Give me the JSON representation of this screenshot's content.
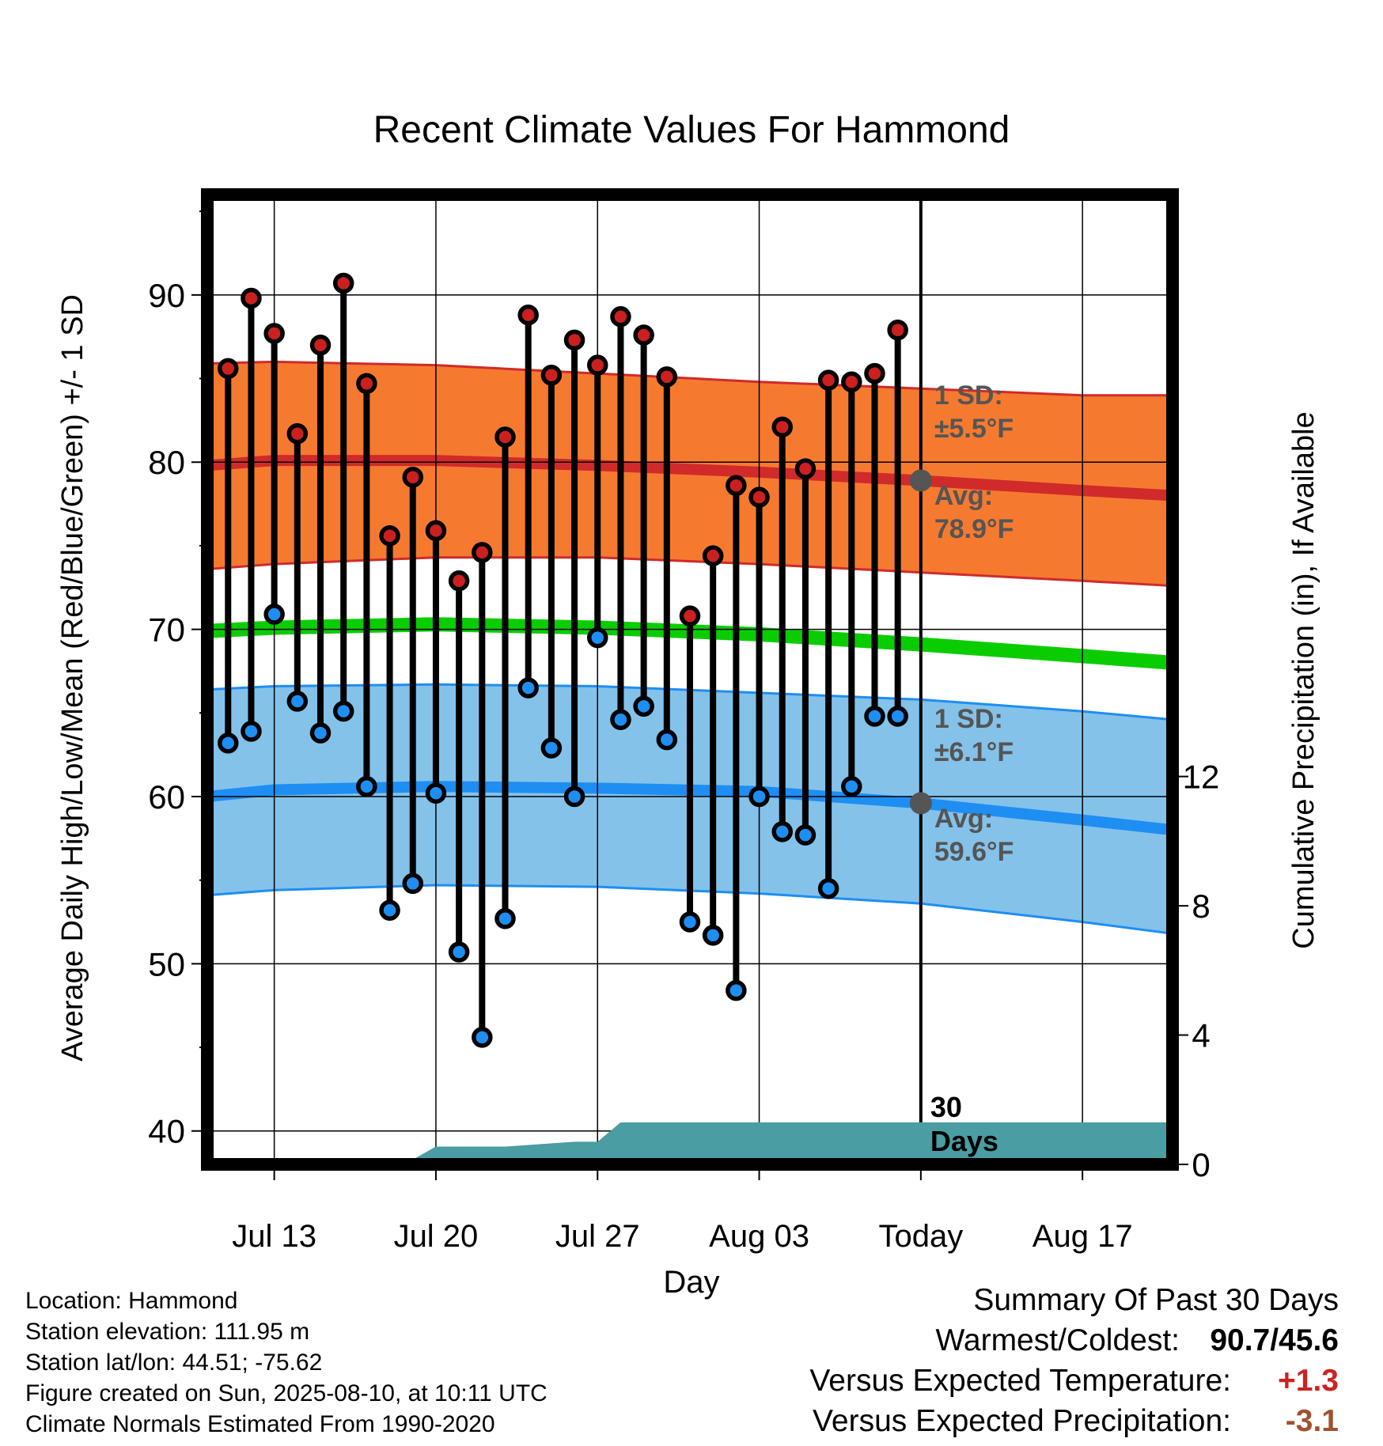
{
  "chart_data": {
    "type": "line",
    "title": "Recent Climate Values For Hammond",
    "xlabel": "Day",
    "ylabel": "Average Daily High/Low/Mean (Red/Blue/Green) +/- 1 SD",
    "y2label": "Cumulative Precipitation (in), If Available",
    "ylim": [
      38,
      96
    ],
    "y2lim": [
      0,
      30
    ],
    "xlim": [
      -30.9,
      10.9
    ],
    "x_ticks": [
      {
        "x": -28,
        "label": "Jul 13"
      },
      {
        "x": -21,
        "label": "Jul 20"
      },
      {
        "x": -14,
        "label": "Jul 27"
      },
      {
        "x": -7,
        "label": "Aug 03"
      },
      {
        "x": 0,
        "label": "Today"
      },
      {
        "x": 7,
        "label": "Aug 17"
      }
    ],
    "y_ticks": [
      40,
      50,
      60,
      70,
      80,
      90
    ],
    "y2_ticks": [
      0,
      4,
      8,
      12
    ],
    "grid": true,
    "normals": {
      "x": [
        -30.9,
        -28,
        -21,
        -14,
        -7,
        0,
        7,
        10.9
      ],
      "high_mean": [
        79.8,
        80.1,
        80.1,
        79.8,
        79.4,
        78.9,
        78.3,
        78.0
      ],
      "high_upper": [
        85.9,
        86.0,
        85.8,
        85.3,
        84.8,
        84.4,
        84.0,
        84.0
      ],
      "high_lower": [
        73.6,
        73.9,
        74.3,
        74.3,
        73.9,
        73.4,
        72.9,
        72.6
      ],
      "mean": [
        69.9,
        70.1,
        70.3,
        70.1,
        69.7,
        69.1,
        68.4,
        68.0
      ],
      "low_mean": [
        60.0,
        60.4,
        60.6,
        60.5,
        60.3,
        59.6,
        58.6,
        58.0
      ],
      "low_upper": [
        66.4,
        66.6,
        66.7,
        66.6,
        66.2,
        65.8,
        65.1,
        64.6
      ],
      "low_lower": [
        54.1,
        54.4,
        54.7,
        54.6,
        54.2,
        53.6,
        52.5,
        51.8
      ]
    },
    "today_avg_high": 78.9,
    "today_avg_low": 59.6,
    "annotations": {
      "high_sd_label": "1 SD:",
      "high_sd_value": "±5.5°F",
      "high_avg_label": "Avg:",
      "high_avg_value": "78.9°F",
      "low_sd_label": "1 SD:",
      "low_sd_value": "±6.1°F",
      "low_avg_label": "Avg:",
      "low_avg_value": "59.6°F",
      "window_label_1": "30",
      "window_label_2": "Days"
    },
    "days": {
      "x": [
        -30,
        -29,
        -28,
        -27,
        -26,
        -25,
        -24,
        -23,
        -22,
        -21,
        -20,
        -19,
        -18,
        -17,
        -16,
        -15,
        -14,
        -13,
        -12,
        -11,
        -10,
        -9,
        -8,
        -7,
        -6,
        -5,
        -4,
        -3,
        -2,
        -1
      ],
      "high": [
        85.6,
        89.8,
        87.7,
        81.7,
        87.0,
        90.7,
        84.7,
        75.6,
        79.1,
        75.9,
        72.9,
        74.6,
        81.5,
        88.8,
        85.2,
        87.3,
        85.8,
        88.7,
        87.6,
        85.1,
        70.8,
        74.4,
        78.6,
        77.9,
        82.1,
        79.6,
        84.9,
        84.8,
        85.3,
        87.9
      ],
      "low": [
        63.2,
        63.9,
        70.9,
        65.7,
        63.8,
        65.1,
        60.6,
        53.2,
        54.8,
        60.2,
        50.7,
        45.6,
        52.7,
        66.5,
        62.9,
        60.0,
        69.5,
        64.6,
        65.4,
        63.4,
        52.5,
        51.7,
        48.4,
        60.0,
        57.9,
        57.7,
        54.5,
        60.6,
        64.8,
        64.8
      ]
    },
    "precip": {
      "x": [
        -30.9,
        -26,
        -24,
        -22,
        -21,
        -19,
        -18,
        -15,
        -14,
        -13,
        -12,
        0,
        10.9
      ],
      "cumulative": [
        0.0,
        0.0,
        0.15,
        0.15,
        0.55,
        0.55,
        0.55,
        0.7,
        0.7,
        1.3,
        1.3,
        1.3,
        1.3
      ]
    },
    "colors": {
      "high_band": "#f57a2f",
      "high_line": "#d12a2a",
      "low_band": "#84c2ea",
      "low_line": "#1e8ef2",
      "mean_line": "#0acd00",
      "precip": "#4a9da2",
      "high_marker": "#cc2020",
      "low_marker": "#1e8ef2",
      "annotation": "#555555"
    }
  },
  "info": {
    "location": "Location: Hammond",
    "elevation": "Station elevation: 111.95 m",
    "latlon": "Station lat/lon: 44.51; -75.62",
    "created": "Figure created on Sun, 2025-08-10, at 10:11 UTC",
    "normals": "Climate Normals Estimated From 1990-2020"
  },
  "summary": {
    "title": "Summary Of Past 30 Days",
    "warmest_label": "Warmest/Coldest:",
    "warmest_value": "90.7/45.6",
    "temp_label": "Versus Expected Temperature:",
    "temp_value": "+1.3",
    "temp_color": "#cc2222",
    "precip_label": "Versus Expected Precipitation:",
    "precip_value": "-3.1",
    "precip_color": "#a0522d"
  }
}
